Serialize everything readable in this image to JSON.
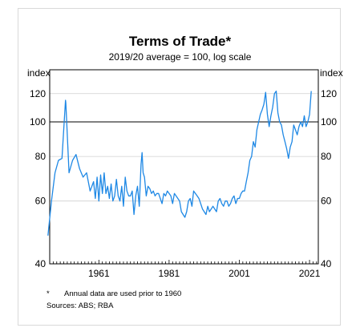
{
  "chart_data": {
    "type": "line",
    "title": "Terms of Trade*",
    "subtitle": "2019/20 average = 100, log scale",
    "ylabel_left": "index",
    "ylabel_right": "index",
    "y_scale": "log",
    "ylim": [
      40,
      140
    ],
    "y_ticks": [
      40,
      60,
      80,
      100,
      120
    ],
    "xlim": [
      1947,
      2023.5
    ],
    "x_ticks": [
      1961,
      1981,
      2001,
      2021
    ],
    "x_tick_labels": [
      "1961",
      "1981",
      "2001",
      "2021"
    ],
    "reference_line": 100,
    "grid": true,
    "color": "#1e88e5",
    "footnote_marker": "*",
    "footnote": "Annual data are used prior to 1960",
    "sources": "Sources: ABS; RBA",
    "series": [
      {
        "x": [
          1946.5,
          1947.5,
          1948.5,
          1949.5,
          1950.5,
          1951.5,
          1951.6,
          1952.5,
          1953.5,
          1954.5,
          1955.5,
          1956.5,
          1957.5,
          1958.5,
          1959.5,
          1960.0,
          1960.5,
          1961.0,
          1961.5,
          1962.0,
          1962.5,
          1963.0,
          1963.5,
          1964.0,
          1964.5,
          1965.0,
          1965.5,
          1966.0,
          1966.5,
          1967.0,
          1967.5,
          1968.0,
          1968.5,
          1969.0,
          1969.5,
          1970.0,
          1970.5,
          1971.0,
          1971.5,
          1972.0,
          1972.5,
          1973.0,
          1973.3,
          1973.6,
          1974.0,
          1974.5,
          1975.0,
          1975.5,
          1976.0,
          1976.5,
          1977.0,
          1977.5,
          1978.0,
          1978.5,
          1979.0,
          1979.5,
          1980.0,
          1980.5,
          1981.0,
          1981.5,
          1982.0,
          1982.5,
          1983.0,
          1983.5,
          1984.0,
          1984.5,
          1985.0,
          1985.5,
          1986.0,
          1986.5,
          1987.0,
          1987.5,
          1988.0,
          1988.5,
          1989.0,
          1989.5,
          1990.0,
          1990.5,
          1991.0,
          1991.5,
          1992.0,
          1992.5,
          1993.0,
          1993.5,
          1994.0,
          1994.5,
          1995.0,
          1995.5,
          1996.0,
          1996.5,
          1997.0,
          1997.5,
          1998.0,
          1998.5,
          1999.0,
          1999.5,
          2000.0,
          2000.5,
          2001.0,
          2001.5,
          2002.0,
          2002.5,
          2003.0,
          2003.5,
          2004.0,
          2004.5,
          2005.0,
          2005.5,
          2006.0,
          2006.5,
          2007.0,
          2007.5,
          2008.0,
          2008.5,
          2009.0,
          2009.5,
          2010.0,
          2010.5,
          2011.0,
          2011.5,
          2012.0,
          2012.5,
          2013.0,
          2013.5,
          2014.0,
          2014.5,
          2015.0,
          2015.5,
          2016.0,
          2016.5,
          2017.0,
          2017.5,
          2018.0,
          2018.5,
          2019.0,
          2019.5,
          2020.0,
          2020.5,
          2021.0,
          2021.5
        ],
        "y": [
          48,
          60,
          72,
          78,
          79,
          115,
          113,
          72,
          78,
          81,
          74,
          70,
          72,
          64,
          68,
          61,
          70,
          60,
          71,
          63,
          72,
          63,
          66,
          61,
          67,
          60,
          62,
          69,
          62,
          60,
          66,
          58,
          70,
          64,
          62,
          62,
          64,
          55,
          62,
          66,
          58,
          76,
          82,
          72,
          70,
          62,
          66,
          65,
          63,
          64,
          62,
          63,
          63,
          61,
          59,
          63,
          62,
          64,
          63,
          62,
          59,
          63,
          62,
          61,
          60,
          56,
          55,
          54,
          56,
          60,
          61,
          58,
          64,
          63,
          62,
          61,
          59,
          57,
          56,
          55,
          58,
          56,
          57,
          58,
          57,
          56,
          60,
          61,
          59,
          58,
          60,
          60,
          58,
          59,
          61,
          62,
          59,
          61,
          61,
          63,
          64,
          64,
          68,
          72,
          78,
          80,
          88,
          85,
          95,
          100,
          105,
          108,
          112,
          121,
          105,
          97,
          104,
          110,
          120,
          122,
          106,
          100,
          98,
          92,
          88,
          84,
          79,
          85,
          88,
          98,
          95,
          92,
          97,
          100,
          97,
          104,
          97,
          100,
          105,
          122
        ]
      }
    ]
  }
}
